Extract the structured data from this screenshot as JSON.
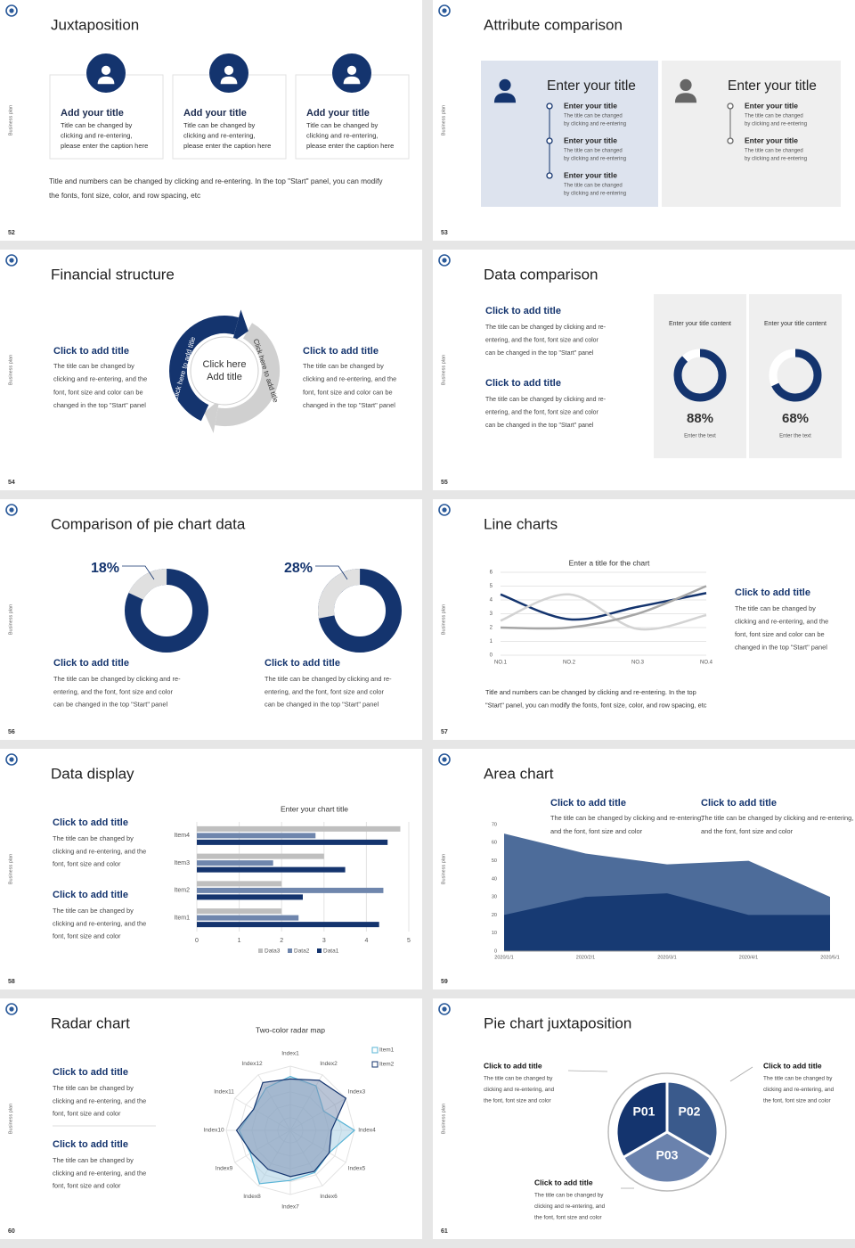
{
  "slides": [
    {
      "number": 52,
      "brand": "Business plan",
      "title": "Juxtaposition",
      "cards": [
        {
          "title": "Add your title",
          "lines": [
            "Title can be changed by",
            "clicking and re-entering,",
            "please enter the caption here"
          ]
        },
        {
          "title": "Add your title",
          "lines": [
            "Title can be changed by",
            "clicking and re-entering,",
            "please enter the caption here"
          ]
        },
        {
          "title": "Add your title",
          "lines": [
            "Title can be changed by",
            "clicking and re-entering,",
            "please enter the caption here"
          ]
        }
      ],
      "caption": [
        "Title and numbers can be changed by clicking and re-entering. In the top \"Start\" panel, you can modify",
        "the fonts, font size, color, and row spacing, etc"
      ]
    },
    {
      "number": 53,
      "brand": "Business plan",
      "title": "Attribute comparison",
      "panels": [
        {
          "title": "Enter your title",
          "items": [
            {
              "title": "Enter your title",
              "lines": [
                "The title can be changed",
                "by clicking and re-entering"
              ]
            },
            {
              "title": "Enter your title",
              "lines": [
                "The title can be changed",
                "by clicking and re-entering"
              ]
            },
            {
              "title": "Enter your title",
              "lines": [
                "The title can be changed",
                "by clicking and re-entering"
              ]
            }
          ]
        },
        {
          "title": "Enter your title",
          "items": [
            {
              "title": "Enter your title",
              "lines": [
                "The title can be changed",
                "by clicking and re-entering"
              ]
            },
            {
              "title": "Enter your title",
              "lines": [
                "The title can be changed",
                "by clicking and re-entering"
              ]
            }
          ]
        }
      ]
    },
    {
      "number": 54,
      "brand": "Business plan",
      "title": "Financial structure",
      "blocks": [
        {
          "title": "Click to add title",
          "lines": [
            "The title can be changed by",
            "clicking and re-entering, and the",
            "font, font size and color can be",
            "changed in the top \"Start\" panel"
          ]
        },
        {
          "title": "Click to add title",
          "lines": [
            "The title can be changed by",
            "clicking and re-entering, and the",
            "font, font size and color can be",
            "changed in the top \"Start\" panel"
          ]
        }
      ],
      "center": [
        "Click here",
        "Add title"
      ],
      "arrow_labels": [
        "Click here to add title",
        "Click here to add title"
      ]
    },
    {
      "number": 55,
      "brand": "Business plan",
      "title": "Data comparison",
      "blocks": [
        {
          "title": "Click to add title",
          "lines": [
            "The title can be changed by clicking and re-",
            "entering, and the font, font size and color",
            "can be changed in the top \"Start\" panel"
          ]
        },
        {
          "title": "Click to add title",
          "lines": [
            "The title can be changed by clicking and re-",
            "entering, and the font, font size and color",
            "can be changed in the top \"Start\" panel"
          ]
        }
      ],
      "cards": [
        {
          "label": "Enter your title content",
          "value": 88,
          "value_label": "88%",
          "caption": "Enter the text"
        },
        {
          "label": "Enter your title content",
          "value": 68,
          "value_label": "68%",
          "caption": "Enter the text"
        }
      ]
    },
    {
      "number": 56,
      "brand": "Business plan",
      "title": "Comparison of pie chart data",
      "donuts": [
        {
          "value": 18,
          "value_label": "18%"
        },
        {
          "value": 28,
          "value_label": "28%"
        }
      ],
      "blocks": [
        {
          "title": "Click to add title",
          "lines": [
            "The title can be changed by clicking and re-",
            "entering, and the font, font size and color",
            "can be changed in the top \"Start\" panel"
          ]
        },
        {
          "title": "Click to add title",
          "lines": [
            "The title can be changed by clicking and re-",
            "entering, and the font, font size and color",
            "can be changed in the top \"Start\" panel"
          ]
        }
      ]
    },
    {
      "number": 57,
      "brand": "Business plan",
      "title": "Line charts",
      "chart_data": {
        "type": "line",
        "title": "Enter a title for the chart",
        "categories": [
          "NO.1",
          "NO.2",
          "NO.3",
          "NO.4"
        ],
        "ylim": [
          0,
          6
        ],
        "yticks": [
          0,
          1,
          2,
          3,
          4,
          5,
          6
        ],
        "grid": true,
        "series": [
          {
            "color": "#14346e",
            "values": [
              4.4,
              2.6,
              3.5,
              4.5
            ]
          },
          {
            "color": "#d3d3d3",
            "values": [
              2.5,
              4.4,
              1.9,
              2.9
            ]
          },
          {
            "color": "#a6a6a6",
            "values": [
              2,
              2,
              3,
              5
            ]
          }
        ]
      },
      "block": {
        "title": "Click to add title",
        "lines": [
          "The title can be changed by",
          "clicking and re-entering, and the",
          "font, font size and color can be",
          "changed in the top \"Start\" panel"
        ]
      },
      "caption": [
        "Title and numbers can be changed by clicking and re-entering. In the top",
        "\"Start\" panel, you can modify the fonts, font size, color, and row spacing, etc"
      ]
    },
    {
      "number": 58,
      "brand": "Business plan",
      "title": "Data display",
      "blocks": [
        {
          "title": "Click to add title",
          "lines": [
            "The title can be changed by",
            "clicking and re-entering, and the",
            "font, font size and color"
          ]
        },
        {
          "title": "Click to add title",
          "lines": [
            "The title can be changed by",
            "clicking and re-entering, and the",
            "font, font size and color"
          ]
        }
      ],
      "chart_data": {
        "type": "bar",
        "orientation": "horizontal",
        "title": "Enter your chart title",
        "categories": [
          "Item1",
          "Item2",
          "Item3",
          "Item4"
        ],
        "xlim": [
          0,
          5
        ],
        "xticks": [
          0,
          1,
          2,
          3,
          4,
          5
        ],
        "grid": true,
        "series": [
          {
            "name": "Data3",
            "color": "#bfbfbf",
            "values": [
              2,
              2,
              3,
              4.8
            ]
          },
          {
            "name": "Data2",
            "color": "#6f86ad",
            "values": [
              2.4,
              4.4,
              1.8,
              2.8
            ]
          },
          {
            "name": "Data1",
            "color": "#14346e",
            "values": [
              4.3,
              2.5,
              3.5,
              4.5
            ]
          }
        ]
      }
    },
    {
      "number": 59,
      "brand": "Business plan",
      "title": "Area chart",
      "blocks": [
        {
          "title": "Click to add title",
          "lines": [
            "The title can be changed by clicking and re-entering,",
            "and the font, font size and color"
          ]
        },
        {
          "title": "Click to add title",
          "lines": [
            "The title can be changed by clicking and re-entering,",
            "and the font, font size and color"
          ]
        }
      ],
      "chart_data": {
        "type": "area",
        "x": [
          "2020/1/1",
          "2020/2/1",
          "2020/3/1",
          "2020/4/1",
          "2020/5/1"
        ],
        "ylim": [
          0,
          70
        ],
        "yticks": [
          0,
          10,
          20,
          30,
          40,
          50,
          60,
          70
        ],
        "series": [
          {
            "color": "#4d6c9a",
            "values": [
              65,
              54,
              48,
              50,
              30
            ]
          },
          {
            "color": "#173a73",
            "values": [
              20,
              30,
              32,
              20,
              20
            ]
          }
        ]
      }
    },
    {
      "number": 60,
      "brand": "Business plan",
      "title": "Radar chart",
      "blocks": [
        {
          "title": "Click to add title",
          "lines": [
            "The title can be changed by",
            "clicking and re-entering, and the",
            "font, font size and color"
          ]
        },
        {
          "title": "Click to add title",
          "lines": [
            "The title can be changed by",
            "clicking and re-entering, and the",
            "font, font size and color"
          ]
        }
      ],
      "chart_data": {
        "type": "radar",
        "title": "Two-color radar map",
        "categories": [
          "Index1",
          "Index2",
          "Index3",
          "Index4",
          "Index5",
          "Index6",
          "Index7",
          "Index8",
          "Index9",
          "Index10",
          "Index11",
          "Index12"
        ],
        "rlim": [
          0,
          5
        ],
        "series": [
          {
            "name": "Item1",
            "color": "#5ab4d6",
            "values": [
              4.2,
              4,
              3,
              5,
              3.5,
              3.8,
              3.9,
              4.8,
              3.6,
              4,
              3.3,
              3.8
            ]
          },
          {
            "name": "Item2",
            "color": "#14346e",
            "values": [
              4,
              4.5,
              5,
              3.2,
              3.5,
              3.7,
              3.6,
              3.5,
              3.5,
              4.2,
              3.3,
              4.3
            ]
          }
        ]
      }
    },
    {
      "number": 61,
      "brand": "Business plan",
      "title": "Pie chart juxtaposition",
      "segments": [
        "P01",
        "P02",
        "P03"
      ],
      "blocks": [
        {
          "title": "Click to add title",
          "lines": [
            "The title can be changed by",
            "clicking and re-entering, and",
            "the font, font size and color"
          ]
        },
        {
          "title": "Click to add title",
          "lines": [
            "The title can be changed by",
            "clicking and re-entering, and",
            "the font, font size and color"
          ]
        },
        {
          "title": "Click to add title",
          "lines": [
            "The title can be changed by",
            "clicking and re-entering, and",
            "the font, font size and color"
          ]
        }
      ]
    }
  ]
}
